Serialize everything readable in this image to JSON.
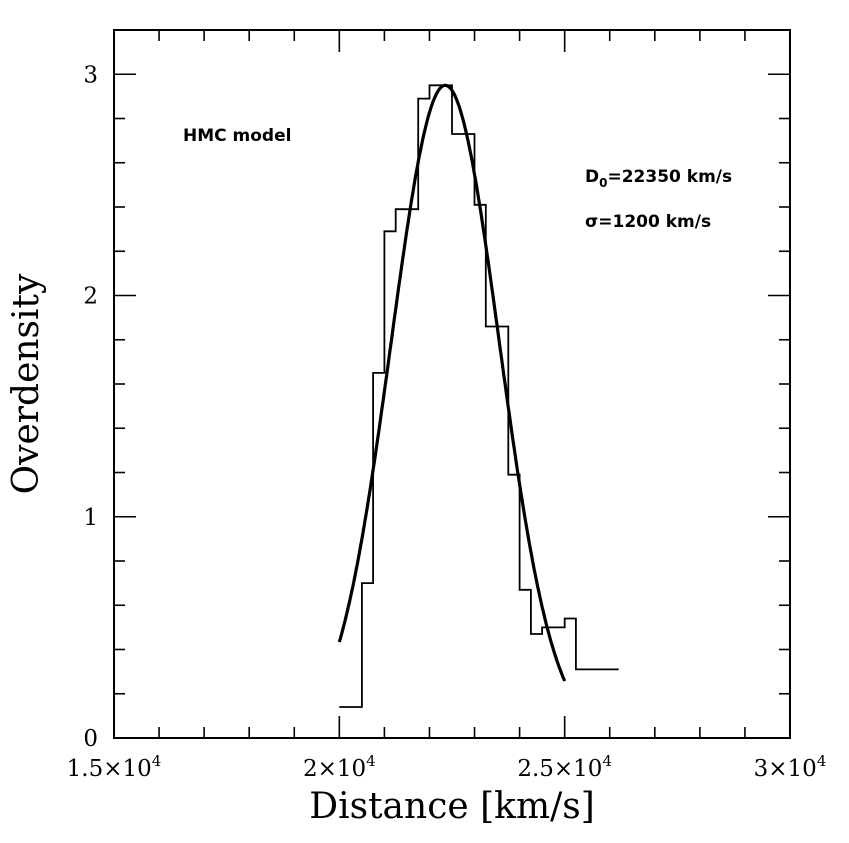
{
  "chart_data": {
    "type": "line",
    "xlabel": "Distance [km/s]",
    "ylabel": "Overdensity",
    "xlim": [
      15000,
      30000
    ],
    "ylim": [
      0,
      3.2
    ],
    "x_ticks": [
      {
        "value": 15000,
        "mantissa": "1.5",
        "exponent": "4"
      },
      {
        "value": 20000,
        "mantissa": "2",
        "exponent": "4"
      },
      {
        "value": 25000,
        "mantissa": "2.5",
        "exponent": "4"
      },
      {
        "value": 30000,
        "mantissa": "3",
        "exponent": "4"
      }
    ],
    "y_ticks": [
      {
        "value": 0,
        "label": "0"
      },
      {
        "value": 1,
        "label": "1"
      },
      {
        "value": 2,
        "label": "2"
      },
      {
        "value": 3,
        "label": "3"
      }
    ],
    "annotations": {
      "model": "HMC model",
      "d0_prefix": "D",
      "d0_subscript": "0",
      "d0_value": "=22350 km/s",
      "sigma": "σ=1200 km/s"
    },
    "series": [
      {
        "style": "step",
        "x": [
          20000,
          20500,
          20750,
          21000,
          21250,
          21750,
          22000,
          22250,
          22500,
          22750,
          23000,
          23250,
          23500,
          23750,
          24000,
          24250,
          24500,
          25000,
          25250,
          25500
        ],
        "y": [
          0.14,
          0.7,
          1.65,
          2.29,
          2.39,
          2.89,
          2.95,
          2.95,
          2.73,
          2.73,
          2.41,
          1.86,
          1.86,
          1.19,
          0.67,
          0.47,
          0.5,
          0.54,
          0.31,
          0.31
        ],
        "x_end": 26200
      },
      {
        "style": "curve",
        "model": "gaussian",
        "x_start": 20000,
        "x_end": 25000,
        "peak": 2.95,
        "center": 22350,
        "sigma": 1200,
        "points": [
          {
            "x": 20000,
            "y": 0.43
          },
          {
            "x": 21000,
            "y": 1.55
          },
          {
            "x": 22000,
            "y": 2.83
          },
          {
            "x": 22400,
            "y": 2.95
          },
          {
            "x": 23000,
            "y": 2.61
          },
          {
            "x": 24000,
            "y": 1.14
          },
          {
            "x": 25000,
            "y": 0.26
          }
        ]
      }
    ]
  }
}
